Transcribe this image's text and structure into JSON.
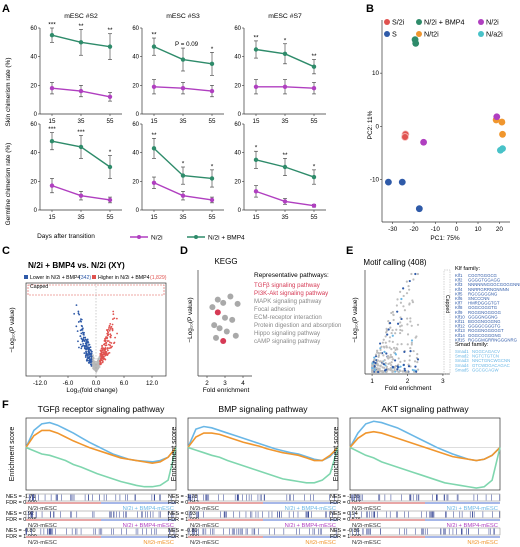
{
  "colors": {
    "green": "#2e8b6a",
    "purple": "#b03fc0",
    "orange": "#f0962e",
    "cyan": "#48c2c8",
    "blue": "#2f5aa8",
    "red": "#e0524f",
    "gsea_blue": "#6ab7e6",
    "gsea_green": "#7fd6ae",
    "grey": "#9a9a9a",
    "kegg_red": "#d63a55"
  },
  "panels": {
    "A": "A",
    "B": "B",
    "C": "C",
    "D": "D",
    "E": "E",
    "F": "F"
  },
  "panelA": {
    "ylabel_top": "Skin chimerism rate (%)",
    "ylabel_bottom": "Germline chimerism rate (%)",
    "xlabel": "Days after transition",
    "legend": [
      "N/2i",
      "N/2i + BMP4"
    ],
    "pvalue_note": "P = 0.09",
    "subplots": [
      {
        "title": "mESC #S2",
        "row": "skin",
        "x": [
          15,
          35,
          55
        ],
        "green": [
          55,
          50,
          47
        ],
        "purple": [
          18,
          16,
          12
        ],
        "green_err": [
          5,
          9,
          9
        ],
        "purple_err": [
          4,
          4,
          3
        ],
        "stars": [
          "***",
          "**",
          "**"
        ],
        "ylim": [
          0,
          60
        ],
        "yticks": [
          "0",
          "20",
          "40",
          "60"
        ]
      },
      {
        "title": "mESC #S3",
        "row": "skin",
        "x": [
          15,
          35,
          55
        ],
        "green": [
          47,
          38,
          35
        ],
        "purple": [
          19,
          18,
          16
        ],
        "green_err": [
          6,
          8,
          8
        ],
        "purple_err": [
          5,
          4,
          4
        ],
        "stars": [
          "**",
          "",
          "*"
        ],
        "ylim": [
          0,
          60
        ],
        "yticks": [
          "0",
          "20",
          "40",
          "60"
        ]
      },
      {
        "title": "mESC #S7",
        "row": "skin",
        "x": [
          15,
          35,
          55
        ],
        "green": [
          45,
          42,
          33
        ],
        "purple": [
          19,
          19,
          18
        ],
        "green_err": [
          6,
          7,
          5
        ],
        "purple_err": [
          5,
          5,
          4
        ],
        "stars": [
          "**",
          "*",
          "**"
        ],
        "ylim": [
          0,
          60
        ],
        "yticks": [
          "0",
          "20",
          "40",
          "60"
        ]
      },
      {
        "title": "",
        "row": "germline",
        "x": [
          15,
          35,
          55
        ],
        "green": [
          48,
          44,
          30
        ],
        "purple": [
          17,
          10,
          7
        ],
        "green_err": [
          6,
          8,
          8
        ],
        "purple_err": [
          5,
          3,
          2
        ],
        "stars": [
          "***",
          "***",
          "*"
        ],
        "ylim": [
          0,
          60
        ],
        "yticks": [
          "0",
          "20",
          "40",
          "60"
        ]
      },
      {
        "title": "",
        "row": "germline",
        "x": [
          15,
          35,
          55
        ],
        "green": [
          43,
          24,
          22
        ],
        "purple": [
          19,
          10,
          7
        ],
        "green_err": [
          7,
          6,
          6
        ],
        "purple_err": [
          4,
          3,
          2
        ],
        "stars": [
          "**",
          "*",
          "*"
        ],
        "ylim": [
          0,
          60
        ],
        "yticks": [
          "0",
          "20",
          "40",
          "60"
        ]
      },
      {
        "title": "",
        "row": "germline",
        "x": [
          15,
          35,
          55
        ],
        "green": [
          35,
          30,
          23
        ],
        "purple": [
          13,
          6,
          3
        ],
        "green_err": [
          6,
          6,
          5
        ],
        "purple_err": [
          4,
          2,
          1
        ],
        "stars": [
          "*",
          "**",
          "*"
        ],
        "ylim": [
          0,
          60
        ],
        "yticks": [
          "0",
          "20",
          "40",
          "60"
        ]
      }
    ]
  },
  "panelB": {
    "legend": [
      "S/2i",
      "N/2i + BMP4",
      "N/2i",
      "S",
      "N/t2i",
      "N/a2i"
    ],
    "xlabel": "PC1: 75%",
    "ylabel": "PC2: 11%",
    "xticks": [
      "-30",
      "-20",
      "-10",
      "0",
      "10",
      "20"
    ],
    "yticks": [
      "-10",
      "0",
      "10"
    ],
    "points": [
      {
        "group": "N/2i + BMP4",
        "x": -19.5,
        "y": 16.3
      },
      {
        "group": "N/2i + BMP4",
        "x": -19.2,
        "y": 15.6
      },
      {
        "group": "S/2i",
        "x": -24,
        "y": -1.5
      },
      {
        "group": "S/2i",
        "x": -24.2,
        "y": -2
      },
      {
        "group": "N/2i",
        "x": -15.5,
        "y": -3
      },
      {
        "group": "S",
        "x": -32,
        "y": -10.5
      },
      {
        "group": "S",
        "x": -25.5,
        "y": -10.5
      },
      {
        "group": "S",
        "x": -17.5,
        "y": -15.5
      },
      {
        "group": "N/t2i",
        "x": 18.5,
        "y": 1.2
      },
      {
        "group": "N/t2i",
        "x": 21.2,
        "y": 0.8
      },
      {
        "group": "N/2i",
        "x": 18.8,
        "y": 1.8
      },
      {
        "group": "N/t2i",
        "x": 21.5,
        "y": -1.5
      },
      {
        "group": "N/a2i",
        "x": 20.5,
        "y": -4.5
      },
      {
        "group": "N/a2i",
        "x": 21.5,
        "y": -4.2
      }
    ]
  },
  "panelC": {
    "title": "N/2i + BMP4 vs. N/2i (XY)",
    "legend_lower": "Lower in N/2i + BMP4",
    "legend_lower_n": "(342)",
    "legend_higher": "Higher in N/2i + BMP4",
    "legend_higher_n": "(1,829)",
    "capped": "Capped",
    "xlabel": "Log₂(fold change)",
    "ylabel": "−Log₁₀(P value)",
    "xticks": [
      "-12.0",
      "-6.0",
      "0.0",
      "6.0",
      "12.0"
    ]
  },
  "panelD": {
    "title": "KEGG",
    "header": "Representative pathways:",
    "pathways": [
      {
        "name": "TGFβ signaling pathway",
        "highlight": true
      },
      {
        "name": "PI3K-Akt signaling pathway",
        "highlight": true
      },
      {
        "name": "MAPK signaling pathway",
        "highlight": false
      },
      {
        "name": "Focal adhesion",
        "highlight": false
      },
      {
        "name": "ECM-receptor interaction",
        "highlight": false
      },
      {
        "name": "Protein digestion and absorption",
        "highlight": false
      },
      {
        "name": "Hippo signaling pathway",
        "highlight": false
      },
      {
        "name": "cAMP signaling pathway",
        "highlight": false
      }
    ],
    "xlabel": "Fold enrichment",
    "ylabel": "−Log₁₀(P value)",
    "xticks": [
      "2",
      "3",
      "4"
    ],
    "points": [
      {
        "x": 2.3,
        "y": 6.5,
        "hl": false
      },
      {
        "x": 2.6,
        "y": 7.2,
        "hl": false
      },
      {
        "x": 2.9,
        "y": 6.9,
        "hl": false
      },
      {
        "x": 3.3,
        "y": 7.5,
        "hl": false
      },
      {
        "x": 3.7,
        "y": 6.8,
        "hl": false
      },
      {
        "x": 2.6,
        "y": 6.0,
        "hl": true
      },
      {
        "x": 3.0,
        "y": 5.5,
        "hl": false
      },
      {
        "x": 3.4,
        "y": 5.3,
        "hl": false
      },
      {
        "x": 2.4,
        "y": 4.8,
        "hl": false
      },
      {
        "x": 2.7,
        "y": 4.5,
        "hl": false
      },
      {
        "x": 3.1,
        "y": 4.2,
        "hl": false
      },
      {
        "x": 2.5,
        "y": 3.6,
        "hl": false
      },
      {
        "x": 2.9,
        "y": 3.3,
        "hl": true
      },
      {
        "x": 3.6,
        "y": 3.8,
        "hl": false
      }
    ]
  },
  "panelE": {
    "title": "Motif calling (408)",
    "capped": "Capped",
    "xlabel": "Fold enrichment",
    "ylabel": "−Log₁₀(P value)",
    "xticks": [
      "1",
      "2",
      "3"
    ],
    "klf_header": "Klf family:",
    "klf_rows": [
      {
        "name": "Klf1",
        "motif": "CGGTGGGCG"
      },
      {
        "name": "Klf2",
        "motif": "GGGGTGGAGG"
      },
      {
        "name": "Klf3",
        "motif": "NNNNNNGGGCGGGGNNNN"
      },
      {
        "name": "Klf4",
        "motif": "NNRRGRRNGNNNN"
      },
      {
        "name": "Klf5",
        "motif": "RGCGGGGNG"
      },
      {
        "name": "Klf6",
        "motif": "SNCCCNN"
      },
      {
        "name": "Klf7",
        "motif": "HMRDGGGTGT"
      },
      {
        "name": "Klf8",
        "motif": "GGGCGGGTG"
      },
      {
        "name": "Klf9",
        "motif": "RGGGNGGGGG"
      },
      {
        "name": "Klf10",
        "motif": "GGGGNGGNG"
      },
      {
        "name": "Klf11",
        "motif": "BGGGNGGGNG"
      },
      {
        "name": "Klf12",
        "motif": "GGGGCGGGTG"
      },
      {
        "name": "Klf13",
        "motif": "RGGGNGGGGGT"
      },
      {
        "name": "Klf14",
        "motif": "GGGCGGGGNG"
      },
      {
        "name": "Klf15",
        "motif": "RGGGMGRRNGGGNRG"
      }
    ],
    "smad_header": "Smad family:",
    "smad_rows": [
      {
        "name": "Smad1",
        "motif": "NGGCAGACV"
      },
      {
        "name": "Smad2",
        "motif": "NGTCTGTCN"
      },
      {
        "name": "Smad3",
        "motif": "NNCTGNCWGCNN"
      },
      {
        "name": "Smad4",
        "motif": "GTCWDGACAGAC"
      },
      {
        "name": "Smad5",
        "motif": "GGCGCAGW"
      }
    ]
  },
  "panelF": {
    "ylabel": "Enrichment score",
    "plots": [
      {
        "title": "TGFβ receptor signaling pathway",
        "stats": [
          [
            "NES = -1.71",
            "FDR = 0.000"
          ],
          [
            "NES = 0.92",
            "FDR = 0.936"
          ],
          [
            "NES = -0.80",
            "FDR = 1.000"
          ]
        ],
        "bars": [
          [
            "N/2i-mESC",
            "N/2i + BMP4-mESC"
          ],
          [
            "N/2i-mESC",
            "N/2i + BMP4-mESC"
          ],
          [
            "N/2i-mESC",
            "N/t2i-mESC"
          ]
        ]
      },
      {
        "title": "BMP signaling pathway",
        "stats": [
          [
            "NES = -1.28",
            "FDR = 0.042"
          ],
          [
            "NES = 0.93",
            "FDR = 1.000"
          ],
          [
            "NES = -0.89",
            "FDR = 1.000"
          ]
        ],
        "bars": [
          [
            "N/2i-mESC",
            "N/2i + BMP4-mESC"
          ],
          [
            "N/2i-mESC",
            "N/2i + BMP4-mESC"
          ],
          [
            "N/2i-mESC",
            "N/t2i-mESC"
          ]
        ]
      },
      {
        "title": "AKT signaling pathway",
        "stats": [
          [
            "NES = -1.36",
            "FDR = 0.047"
          ],
          [
            "NES = 0.94",
            "FDR = 0.576"
          ],
          [
            "NES = -0.86",
            "FDR = 1.000"
          ]
        ],
        "bars": [
          [
            "N/2i-mESC",
            "N/2i + BMP4-mESC"
          ],
          [
            "N/2i-mESC",
            "N/2i + BMP4-mESC"
          ],
          [
            "N/2i-mESC",
            "N/t2i-mESC"
          ]
        ]
      }
    ]
  },
  "chart_data": [
    {
      "type": "line",
      "title": "mESC #S2",
      "ylabel": "Skin chimerism rate (%)",
      "x": [
        15,
        35,
        55
      ],
      "series": [
        {
          "name": "N/2i + BMP4",
          "values": [
            55,
            50,
            47
          ]
        },
        {
          "name": "N/2i",
          "values": [
            18,
            16,
            12
          ]
        }
      ],
      "ylim": [
        0,
        60
      ]
    },
    {
      "type": "line",
      "title": "mESC #S3",
      "ylabel": "Skin chimerism rate (%)",
      "x": [
        15,
        35,
        55
      ],
      "series": [
        {
          "name": "N/2i + BMP4",
          "values": [
            47,
            38,
            35
          ]
        },
        {
          "name": "N/2i",
          "values": [
            19,
            18,
            16
          ]
        }
      ],
      "ylim": [
        0,
        60
      ]
    },
    {
      "type": "line",
      "title": "mESC #S7",
      "ylabel": "Skin chimerism rate (%)",
      "x": [
        15,
        35,
        55
      ],
      "series": [
        {
          "name": "N/2i + BMP4",
          "values": [
            45,
            42,
            33
          ]
        },
        {
          "name": "N/2i",
          "values": [
            19,
            19,
            18
          ]
        }
      ],
      "ylim": [
        0,
        60
      ]
    },
    {
      "type": "line",
      "title": "mESC #S2",
      "ylabel": "Germline chimerism rate (%)",
      "xlabel": "Days after transition",
      "x": [
        15,
        35,
        55
      ],
      "series": [
        {
          "name": "N/2i + BMP4",
          "values": [
            48,
            44,
            30
          ]
        },
        {
          "name": "N/2i",
          "values": [
            17,
            10,
            7
          ]
        }
      ],
      "ylim": [
        0,
        60
      ]
    },
    {
      "type": "line",
      "title": "mESC #S3",
      "ylabel": "Germline chimerism rate (%)",
      "x": [
        15,
        35,
        55
      ],
      "series": [
        {
          "name": "N/2i + BMP4",
          "values": [
            43,
            24,
            22
          ]
        },
        {
          "name": "N/2i",
          "values": [
            19,
            10,
            7
          ]
        }
      ],
      "ylim": [
        0,
        60
      ]
    },
    {
      "type": "line",
      "title": "mESC #S7",
      "ylabel": "Germline chimerism rate (%)",
      "x": [
        15,
        35,
        55
      ],
      "series": [
        {
          "name": "N/2i + BMP4",
          "values": [
            35,
            30,
            23
          ]
        },
        {
          "name": "N/2i",
          "values": [
            13,
            6,
            3
          ]
        }
      ],
      "ylim": [
        0,
        60
      ]
    },
    {
      "type": "scatter",
      "xlabel": "PC1: 75%",
      "ylabel": "PC2: 11%",
      "xlim": [
        -35,
        25
      ],
      "ylim": [
        -18,
        20
      ]
    },
    {
      "type": "scatter",
      "title": "N/2i + BMP4 vs. N/2i (XY)",
      "xlabel": "Log₂(fold change)",
      "ylabel": "−Log₁₀(P value)",
      "xlim": [
        -15,
        15
      ]
    },
    {
      "type": "scatter",
      "title": "KEGG",
      "xlabel": "Fold enrichment",
      "ylabel": "−Log₁₀(P value)",
      "xlim": [
        1.5,
        4.5
      ]
    },
    {
      "type": "scatter",
      "title": "Motif calling (408)",
      "xlabel": "Fold enrichment",
      "ylabel": "−Log₁₀(P value)",
      "xlim": [
        0.8,
        3.2
      ]
    },
    {
      "type": "line",
      "title": "TGFβ receptor signaling pathway",
      "ylabel": "Enrichment score"
    },
    {
      "type": "line",
      "title": "BMP signaling pathway",
      "ylabel": "Enrichment score"
    },
    {
      "type": "line",
      "title": "AKT signaling pathway",
      "ylabel": "Enrichment score"
    }
  ]
}
